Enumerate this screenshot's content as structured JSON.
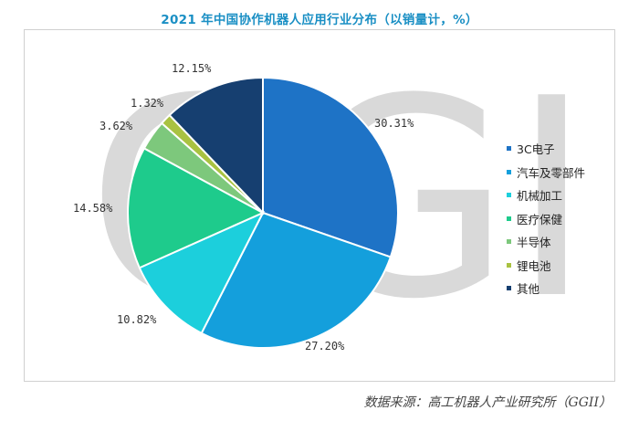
{
  "title": "2021 年中国协作机器人应用行业分布（以销量计，%）",
  "source": "数据来源：高工机器人产业研究所（GGII）",
  "watermark": "GGII",
  "chart_data": {
    "type": "pie",
    "title": "2021 年中国协作机器人应用行业分布（以销量计，%）",
    "legend_position": "right",
    "slices": [
      {
        "label": "3C电子",
        "value": 30.31,
        "display": "30.31%",
        "color": "#1e73c6"
      },
      {
        "label": "汽车及零部件",
        "value": 27.2,
        "display": "27.20%",
        "color": "#149fdc"
      },
      {
        "label": "机械加工",
        "value": 10.82,
        "display": "10.82%",
        "color": "#1ccfdc"
      },
      {
        "label": "医疗保健",
        "value": 14.58,
        "display": "14.58%",
        "color": "#1ecb8c"
      },
      {
        "label": "半导体",
        "value": 3.62,
        "display": "3.62%",
        "color": "#7dc87c"
      },
      {
        "label": "锂电池",
        "value": 1.32,
        "display": "1.32%",
        "color": "#a9c241"
      },
      {
        "label": "其他",
        "value": 12.15,
        "display": "12.15%",
        "color": "#163f70"
      }
    ]
  }
}
